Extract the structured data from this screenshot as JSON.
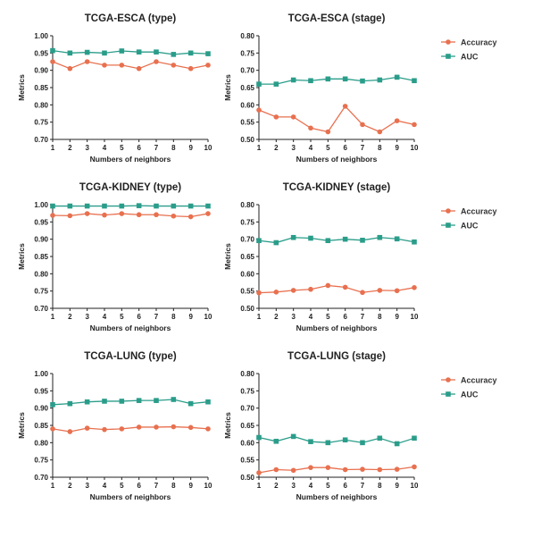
{
  "chart_data": [
    {
      "type": "line",
      "title": "TCGA-ESCA (type)",
      "xlabel": "Numbers of neighbors",
      "ylabel": "Metrics",
      "x": [
        1,
        2,
        3,
        4,
        5,
        6,
        7,
        8,
        9,
        10
      ],
      "ylim": [
        0.7,
        1.0
      ],
      "yticks": [
        "0.70",
        "0.75",
        "0.80",
        "0.85",
        "0.90",
        "0.95",
        "1.00"
      ],
      "legend": false,
      "series": [
        {
          "name": "Accuracy",
          "color": "#e8704f",
          "values": [
            0.925,
            0.905,
            0.925,
            0.915,
            0.915,
            0.905,
            0.925,
            0.915,
            0.905,
            0.915
          ]
        },
        {
          "name": "AUC",
          "color": "#2a9d8a",
          "values": [
            0.957,
            0.95,
            0.952,
            0.95,
            0.956,
            0.953,
            0.953,
            0.946,
            0.95,
            0.948
          ]
        }
      ]
    },
    {
      "type": "line",
      "title": "TCGA-ESCA (stage)",
      "xlabel": "Numbers of neighbors",
      "ylabel": "Metrics",
      "x": [
        1,
        2,
        3,
        4,
        5,
        6,
        7,
        8,
        9,
        10
      ],
      "ylim": [
        0.5,
        0.8
      ],
      "yticks": [
        "0.50",
        "0.55",
        "0.60",
        "0.65",
        "0.70",
        "0.75",
        "0.80"
      ],
      "legend": true,
      "series": [
        {
          "name": "Accuracy",
          "color": "#e8704f",
          "values": [
            0.585,
            0.565,
            0.565,
            0.533,
            0.522,
            0.596,
            0.543,
            0.522,
            0.554,
            0.543
          ]
        },
        {
          "name": "AUC",
          "color": "#2a9d8a",
          "values": [
            0.66,
            0.66,
            0.672,
            0.67,
            0.675,
            0.675,
            0.669,
            0.672,
            0.68,
            0.67
          ]
        }
      ]
    },
    {
      "type": "line",
      "title": "TCGA-KIDNEY (type)",
      "xlabel": "Numbers of neighbors",
      "ylabel": "Metrics",
      "x": [
        1,
        2,
        3,
        4,
        5,
        6,
        7,
        8,
        9,
        10
      ],
      "ylim": [
        0.7,
        1.0
      ],
      "yticks": [
        "0.70",
        "0.75",
        "0.80",
        "0.85",
        "0.90",
        "0.95",
        "1.00"
      ],
      "legend": false,
      "series": [
        {
          "name": "Accuracy",
          "color": "#e8704f",
          "values": [
            0.969,
            0.968,
            0.974,
            0.97,
            0.974,
            0.971,
            0.971,
            0.967,
            0.965,
            0.974
          ]
        },
        {
          "name": "AUC",
          "color": "#2a9d8a",
          "values": [
            0.996,
            0.996,
            0.996,
            0.996,
            0.996,
            0.997,
            0.996,
            0.996,
            0.996,
            0.996
          ]
        }
      ]
    },
    {
      "type": "line",
      "title": "TCGA-KIDNEY (stage)",
      "xlabel": "Numbers of neighbors",
      "ylabel": "Metrics",
      "x": [
        1,
        2,
        3,
        4,
        5,
        6,
        7,
        8,
        9,
        10
      ],
      "ylim": [
        0.5,
        0.8
      ],
      "yticks": [
        "0.50",
        "0.55",
        "0.60",
        "0.65",
        "0.70",
        "0.75",
        "0.80"
      ],
      "legend": true,
      "series": [
        {
          "name": "Accuracy",
          "color": "#e8704f",
          "values": [
            0.545,
            0.547,
            0.552,
            0.555,
            0.566,
            0.561,
            0.546,
            0.552,
            0.551,
            0.56
          ]
        },
        {
          "name": "AUC",
          "color": "#2a9d8a",
          "values": [
            0.696,
            0.69,
            0.705,
            0.703,
            0.696,
            0.7,
            0.697,
            0.705,
            0.701,
            0.692
          ]
        }
      ]
    },
    {
      "type": "line",
      "title": "TCGA-LUNG (type)",
      "xlabel": "Numbers of neighbors",
      "ylabel": "Metrics",
      "x": [
        1,
        2,
        3,
        4,
        5,
        6,
        7,
        8,
        9,
        10
      ],
      "ylim": [
        0.7,
        1.0
      ],
      "yticks": [
        "0.70",
        "0.75",
        "0.80",
        "0.85",
        "0.90",
        "0.95",
        "1.00"
      ],
      "legend": false,
      "series": [
        {
          "name": "Accuracy",
          "color": "#e8704f",
          "values": [
            0.84,
            0.832,
            0.842,
            0.838,
            0.84,
            0.845,
            0.845,
            0.846,
            0.844,
            0.84
          ]
        },
        {
          "name": "AUC",
          "color": "#2a9d8a",
          "values": [
            0.91,
            0.913,
            0.918,
            0.92,
            0.92,
            0.922,
            0.922,
            0.925,
            0.913,
            0.918
          ]
        }
      ]
    },
    {
      "type": "line",
      "title": "TCGA-LUNG (stage)",
      "xlabel": "Numbers of neighbors",
      "ylabel": "Metrics",
      "x": [
        1,
        2,
        3,
        4,
        5,
        6,
        7,
        8,
        9,
        10
      ],
      "ylim": [
        0.5,
        0.8
      ],
      "yticks": [
        "0.50",
        "0.55",
        "0.60",
        "0.65",
        "0.70",
        "0.75",
        "0.80"
      ],
      "legend": true,
      "series": [
        {
          "name": "Accuracy",
          "color": "#e8704f",
          "values": [
            0.513,
            0.522,
            0.52,
            0.528,
            0.528,
            0.522,
            0.523,
            0.522,
            0.523,
            0.53
          ]
        },
        {
          "name": "AUC",
          "color": "#2a9d8a",
          "values": [
            0.615,
            0.604,
            0.618,
            0.603,
            0.6,
            0.608,
            0.6,
            0.613,
            0.597,
            0.613
          ]
        }
      ]
    }
  ]
}
